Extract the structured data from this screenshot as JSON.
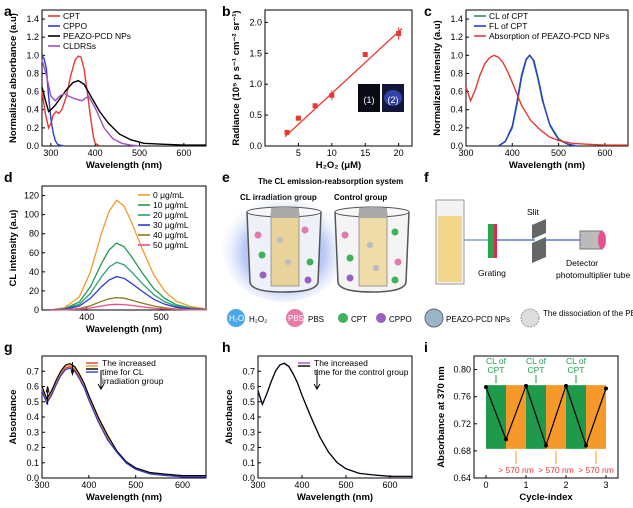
{
  "colors": {
    "red": "#e8392f",
    "blue": "#2f3bd1",
    "black": "#000000",
    "purple": "#a04fc0",
    "green": "#1f9a4c",
    "orange": "#f59a2a",
    "teal": "#26a17b",
    "pink": "#e84f8f",
    "olive": "#8a7a1a"
  },
  "panel_letters": [
    "a",
    "b",
    "c",
    "d",
    "e",
    "f",
    "g",
    "h",
    "i"
  ],
  "chart_data": [
    {
      "panel": "a",
      "type": "line",
      "xlabel": "Wavelength (nm)",
      "ylabel": "Normalized absorbance (a.u)",
      "xlim": [
        280,
        650
      ],
      "ylim": [
        0,
        1.5
      ],
      "xticks": [
        300,
        400,
        500,
        600
      ],
      "yticks": [
        0.0,
        0.2,
        0.4,
        0.6,
        0.8,
        1.0,
        1.2,
        1.4
      ],
      "legend_position": "top-left",
      "series": [
        {
          "name": "CPT",
          "color": "red",
          "x": [
            280,
            288,
            295,
            300,
            305,
            312,
            318,
            325,
            335,
            345,
            355,
            362,
            368,
            375,
            382,
            390,
            396,
            400,
            410
          ],
          "y": [
            0.6,
            0.35,
            0.2,
            0.25,
            0.34,
            0.38,
            0.36,
            0.4,
            0.55,
            0.78,
            0.95,
            0.99,
            0.98,
            0.85,
            0.6,
            0.3,
            0.1,
            0.03,
            0.0
          ]
        },
        {
          "name": "CPPO",
          "color": "blue",
          "x": [
            280,
            285,
            290,
            295,
            300,
            305,
            310,
            315,
            320,
            330
          ],
          "y": [
            1.0,
            0.96,
            0.85,
            0.55,
            0.3,
            0.15,
            0.06,
            0.02,
            0.01,
            0.0
          ]
        },
        {
          "name": "PEAZO-PCD NPs",
          "color": "black",
          "x": [
            280,
            288,
            295,
            300,
            310,
            320,
            335,
            350,
            362,
            375,
            390,
            410,
            430,
            455,
            480,
            510,
            550,
            600,
            650
          ],
          "y": [
            0.65,
            0.5,
            0.38,
            0.4,
            0.45,
            0.52,
            0.62,
            0.7,
            0.72,
            0.68,
            0.55,
            0.38,
            0.25,
            0.13,
            0.07,
            0.03,
            0.02,
            0.01,
            0.01
          ]
        },
        {
          "name": "CLDRSs",
          "color": "purple",
          "x": [
            280,
            290,
            300,
            310,
            320,
            330,
            340,
            355,
            370,
            385,
            400,
            420,
            440,
            460,
            480,
            500
          ],
          "y": [
            0.95,
            0.78,
            0.55,
            0.5,
            0.55,
            0.58,
            0.55,
            0.52,
            0.5,
            0.55,
            0.42,
            0.2,
            0.08,
            0.03,
            0.01,
            0.0
          ]
        }
      ]
    },
    {
      "panel": "b",
      "type": "scatter",
      "xlabel": "H₂O₂ (μM)",
      "ylabel": "Radiance (10⁵ p s⁻¹ cm⁻² sr⁻¹)",
      "xlim": [
        0,
        22
      ],
      "ylim": [
        0,
        2.2
      ],
      "xticks": [
        5,
        10,
        15,
        20
      ],
      "yticks": [
        0.0,
        0.5,
        1.0,
        1.5,
        2.0
      ],
      "x": [
        3.3,
        5,
        7.5,
        10,
        15,
        20
      ],
      "y": [
        0.22,
        0.45,
        0.65,
        0.82,
        1.48,
        1.82
      ],
      "err": [
        0.03,
        0.04,
        0.04,
        0.08,
        0.04,
        0.1
      ],
      "fit": {
        "x": [
          3,
          20.5
        ],
        "y": [
          0.15,
          1.9
        ]
      },
      "inset_labels": [
        "(1)",
        "(2)"
      ]
    },
    {
      "panel": "c",
      "type": "line",
      "xlabel": "Wavelength (nm)",
      "ylabel": "Normalized intensity (a.u)",
      "xlim": [
        300,
        650
      ],
      "ylim": [
        0,
        1.5
      ],
      "xticks": [
        300,
        400,
        500,
        600
      ],
      "yticks": [
        0.0,
        0.2,
        0.4,
        0.6,
        0.8,
        1.0,
        1.2,
        1.4
      ],
      "legend_position": "top-right",
      "series": [
        {
          "name": "CL of CPT",
          "color": "green",
          "x": [
            370,
            385,
            400,
            410,
            420,
            430,
            437,
            445,
            455,
            465,
            480,
            500,
            520,
            540
          ],
          "y": [
            0.0,
            0.05,
            0.2,
            0.45,
            0.75,
            0.95,
            1.0,
            0.95,
            0.75,
            0.5,
            0.25,
            0.08,
            0.02,
            0.0
          ]
        },
        {
          "name": "FL of CPT",
          "color": "blue",
          "x": [
            370,
            385,
            400,
            410,
            420,
            430,
            438,
            447,
            457,
            467,
            482,
            500,
            520,
            540
          ],
          "y": [
            0.0,
            0.05,
            0.22,
            0.48,
            0.78,
            0.96,
            1.0,
            0.94,
            0.72,
            0.48,
            0.22,
            0.07,
            0.02,
            0.0
          ]
        },
        {
          "name": "Absorption of PEAZO-PCD NPs",
          "color": "red",
          "x": [
            300,
            310,
            320,
            330,
            340,
            350,
            360,
            370,
            380,
            390,
            400,
            420,
            440,
            460,
            480,
            500,
            530,
            560,
            600,
            650
          ],
          "y": [
            0.65,
            0.5,
            0.62,
            0.78,
            0.9,
            0.97,
            1.0,
            0.98,
            0.92,
            0.82,
            0.7,
            0.45,
            0.28,
            0.18,
            0.1,
            0.06,
            0.03,
            0.02,
            0.01,
            0.01
          ]
        }
      ]
    },
    {
      "panel": "d",
      "type": "line",
      "xlabel": "Wavelength (nm)",
      "ylabel": "CL intensity (a.u)",
      "xlim": [
        340,
        560
      ],
      "ylim": [
        0,
        130
      ],
      "xticks": [
        400,
        500
      ],
      "yticks": [
        0,
        20,
        40,
        60,
        80,
        100,
        120
      ],
      "legend_position": "top-right",
      "series": [
        {
          "name": "0 μg/mL",
          "color": "orange",
          "peak": 115
        },
        {
          "name": "10 μg/mL",
          "color": "green",
          "peak": 70
        },
        {
          "name": "20 μg/mL",
          "color": "teal",
          "peak": 50
        },
        {
          "name": "30 μg/mL",
          "color": "blue",
          "peak": 35
        },
        {
          "name": "40 μg/mL",
          "color": "olive",
          "peak": 13
        },
        {
          "name": "50 μg/mL",
          "color": "pink",
          "peak": 6
        }
      ],
      "x": [
        350,
        370,
        390,
        405,
        420,
        430,
        440,
        450,
        460,
        475,
        490,
        505,
        520,
        540,
        560
      ],
      "shape": [
        0.0,
        0.02,
        0.12,
        0.35,
        0.7,
        0.9,
        1.0,
        0.95,
        0.8,
        0.55,
        0.32,
        0.17,
        0.08,
        0.03,
        0.01
      ]
    },
    {
      "panel": "g",
      "type": "line",
      "xlabel": "Wavelength (nm)",
      "ylabel": "Absorbance",
      "xlim": [
        300,
        650
      ],
      "ylim": [
        0,
        0.8
      ],
      "xticks": [
        300,
        400,
        500,
        600
      ],
      "yticks": [
        0.0,
        0.1,
        0.2,
        0.3,
        0.4,
        0.5,
        0.6,
        0.7
      ],
      "legend": "The increased time for CL irradiation group",
      "series": [
        {
          "color": "red",
          "offset": 0.0
        },
        {
          "color": "orange",
          "offset": 0.01
        },
        {
          "color": "black",
          "offset": 0.02
        },
        {
          "color": "blue",
          "offset": -0.01
        }
      ],
      "x": [
        300,
        310,
        320,
        330,
        340,
        350,
        360,
        370,
        380,
        390,
        400,
        420,
        440,
        460,
        480,
        500,
        530,
        560,
        600,
        650
      ],
      "shape": [
        0.58,
        0.5,
        0.55,
        0.62,
        0.68,
        0.72,
        0.73,
        0.71,
        0.66,
        0.6,
        0.52,
        0.38,
        0.26,
        0.17,
        0.1,
        0.06,
        0.03,
        0.02,
        0.01,
        0.01
      ]
    },
    {
      "panel": "h",
      "type": "line",
      "xlabel": "Wavelength (nm)",
      "ylabel": "Absorbance",
      "xlim": [
        300,
        650
      ],
      "ylim": [
        0,
        0.8
      ],
      "xticks": [
        300,
        400,
        500,
        600
      ],
      "yticks": [
        0.0,
        0.1,
        0.2,
        0.3,
        0.4,
        0.5,
        0.6,
        0.7
      ],
      "legend": "The increased time for the control group",
      "series": [
        {
          "color": "purple",
          "offset": 0.0
        },
        {
          "color": "black",
          "offset": 0.003
        }
      ],
      "x": [
        300,
        310,
        320,
        330,
        340,
        350,
        360,
        370,
        380,
        390,
        400,
        420,
        440,
        460,
        480,
        500,
        530,
        560,
        600,
        650
      ],
      "shape": [
        0.57,
        0.48,
        0.55,
        0.63,
        0.7,
        0.74,
        0.75,
        0.73,
        0.68,
        0.62,
        0.54,
        0.4,
        0.27,
        0.17,
        0.1,
        0.06,
        0.03,
        0.02,
        0.01,
        0.01
      ]
    },
    {
      "panel": "i",
      "type": "line",
      "xlabel": "Cycle-index",
      "ylabel": "Absorbance at 370 nm",
      "xlim": [
        -0.3,
        3.3
      ],
      "ylim": [
        0.64,
        0.82
      ],
      "xticks": [
        0,
        1,
        2,
        3
      ],
      "yticks": [
        0.64,
        0.68,
        0.72,
        0.76,
        0.8
      ],
      "x": [
        0,
        0.5,
        1,
        1.5,
        2,
        2.5,
        3
      ],
      "y": [
        0.774,
        0.697,
        0.776,
        0.688,
        0.776,
        0.688,
        0.772
      ],
      "top_labels": [
        "CL of CPT",
        "CL of CPT",
        "CL of CPT"
      ],
      "bottom_labels": [
        "> 570 nm",
        "> 570 nm",
        "> 570 nm"
      ]
    }
  ],
  "diagram_e": {
    "title": "The CL emission-reabsorption system",
    "group1": "CL irradiation group",
    "group2": "Control group",
    "legend": [
      "H₂O₂",
      "PBS",
      "CPT",
      "CPPO",
      "PEAZO-PCD NPs",
      "The dissociation of the PEAZO-PCD NPs"
    ],
    "h2o2_icon": "H₂O₂",
    "pbs_icon": "PBS"
  },
  "diagram_f": {
    "slit": "Slit",
    "grating": "Grating",
    "detector": "Detector",
    "tube": "photomultiplier tube"
  }
}
